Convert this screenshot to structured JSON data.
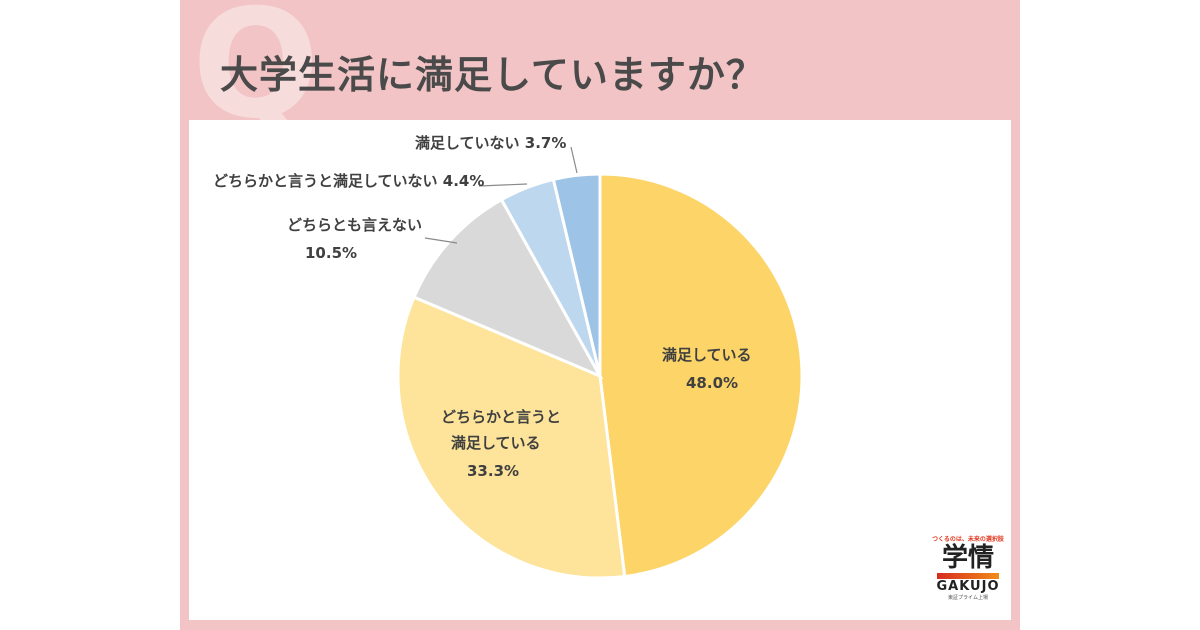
{
  "header": {
    "q_mark": "Q",
    "title": "大学生活に満足していますか？"
  },
  "logo": {
    "tagline": "つくるのは、未来の選択肢",
    "kanji": "学情",
    "roman": "GAKUJO",
    "sub": "東証プライム上場"
  },
  "colors": {
    "frame": "#f2c4c5",
    "q_mark": "#f7dcdc",
    "title": "#4a4a4a"
  },
  "labels": {
    "s1_name": "満足している",
    "s1_val": "48.0%",
    "s2_name_a": "どちらかと言うと",
    "s2_name_b": "満足している",
    "s2_val": "33.3%",
    "s3_name": "どちらとも言えない",
    "s3_val": "10.5%",
    "s4": "どちらかと言うと満足していない 4.4%",
    "s5": "満足していない 3.7%"
  },
  "chart_data": {
    "type": "pie",
    "title": "大学生活に満足していますか？",
    "categories": [
      "満足している",
      "どちらかと言うと満足している",
      "どちらとも言えない",
      "どちらかと言うと満足していない",
      "満足していない"
    ],
    "values": [
      48.0,
      33.3,
      10.5,
      4.4,
      3.7
    ],
    "colors": [
      "#fdd468",
      "#fde49a",
      "#d9d9d9",
      "#bdd7ee",
      "#9dc3e6"
    ],
    "start_angle": "12 o'clock, clockwise",
    "unit": "%"
  }
}
